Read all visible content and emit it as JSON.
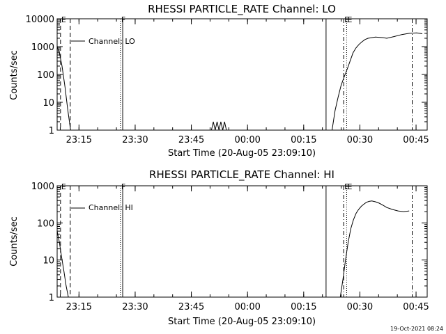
{
  "chart_data": [
    {
      "type": "line",
      "title": "RHESSI PARTICLE_RATE Channel: LO",
      "xlabel": "Start Time (20-Aug-05 23:09:10)",
      "ylabel": "Counts/sec",
      "yscale": "log",
      "ylim": [
        1,
        10000
      ],
      "xlim_minutes_after_start": [
        0,
        98.8
      ],
      "ytick_labels": [
        "1",
        "10",
        "100",
        "1000",
        "10000"
      ],
      "xtick_labels": [
        "23:15",
        "23:30",
        "23:45",
        "00:00",
        "00:15",
        "00:30",
        "00:45"
      ],
      "xtick_minutes_after_start": [
        5.83,
        20.83,
        35.83,
        50.83,
        65.83,
        80.83,
        95.83
      ],
      "legend": "Channel: LO",
      "event_markers": [
        {
          "label": "E",
          "minute": 0.9,
          "style": "dashed"
        },
        {
          "label": "F",
          "minute": 16.9,
          "style": "dotted"
        },
        {
          "label": "E",
          "minute": 76.5,
          "style": "dashdot"
        },
        {
          "label": "E",
          "minute": 77.3,
          "style": "dotted"
        }
      ],
      "extra_lines": [
        {
          "minute": 3.5,
          "style": "dashed"
        },
        {
          "minute": 17.5,
          "style": "solid"
        },
        {
          "minute": 71.8,
          "style": "solid"
        },
        {
          "minute": 94.8,
          "style": "dashdot"
        }
      ],
      "series": [
        {
          "x": [
            0,
            0.6,
            1.3,
            2.1,
            2.8,
            3.6
          ],
          "y": [
            1000,
            600,
            200,
            35,
            6,
            1
          ]
        },
        {
          "x": [
            41.2,
            41.7,
            42.2,
            42.7,
            43.2,
            43.7,
            44.2,
            44.7,
            45.2
          ],
          "y": [
            1,
            2,
            1,
            2,
            1,
            2,
            1,
            2,
            1
          ]
        },
        {
          "x": [
            73.4,
            74.2,
            75.0,
            75.8,
            76.6,
            77.4,
            78.2,
            79.0,
            79.8,
            80.6,
            81.4,
            82.2,
            83.0,
            85.0,
            87.0,
            88.0,
            90.0,
            92.0,
            94.0,
            96.0,
            97.5
          ],
          "y": [
            1,
            5,
            15,
            40,
            80,
            150,
            300,
            600,
            900,
            1200,
            1500,
            1800,
            2000,
            2200,
            2100,
            2000,
            2300,
            2700,
            3000,
            3100,
            2900
          ]
        }
      ]
    },
    {
      "type": "line",
      "title": "RHESSI PARTICLE_RATE Channel: HI",
      "xlabel": "Start Time (20-Aug-05 23:09:10)",
      "ylabel": "Counts/sec",
      "yscale": "log",
      "ylim": [
        1,
        1000
      ],
      "xlim_minutes_after_start": [
        0,
        98.8
      ],
      "ytick_labels": [
        "1",
        "10",
        "100",
        "1000"
      ],
      "xtick_labels": [
        "23:15",
        "23:30",
        "23:45",
        "00:00",
        "00:15",
        "00:30",
        "00:45"
      ],
      "xtick_minutes_after_start": [
        5.83,
        20.83,
        35.83,
        50.83,
        65.83,
        80.83,
        95.83
      ],
      "legend": "Channel: HI",
      "event_markers": [
        {
          "label": "E",
          "minute": 0.9,
          "style": "dashed"
        },
        {
          "label": "F",
          "minute": 16.9,
          "style": "dotted"
        },
        {
          "label": "E",
          "minute": 76.5,
          "style": "dashdot"
        },
        {
          "label": "E",
          "minute": 77.3,
          "style": "dotted"
        }
      ],
      "extra_lines": [
        {
          "minute": 3.5,
          "style": "dashed"
        },
        {
          "minute": 17.5,
          "style": "solid"
        },
        {
          "minute": 71.8,
          "style": "solid"
        },
        {
          "minute": 94.8,
          "style": "dashdot"
        }
      ],
      "series": [
        {
          "x": [
            0,
            0.6,
            1.2,
            1.8,
            2.4,
            3.0
          ],
          "y": [
            60,
            30,
            12,
            5,
            2,
            1
          ]
        },
        {
          "x": [
            75.6,
            76.3,
            77.0,
            77.7,
            78.4,
            79.1,
            79.8,
            80.5,
            81.2,
            81.9,
            82.6,
            83.3,
            84.0,
            85.0,
            86.0,
            87.0,
            88.0,
            89.5,
            91.0,
            92.5,
            94.0
          ],
          "y": [
            1,
            3,
            10,
            30,
            70,
            120,
            180,
            230,
            280,
            320,
            360,
            380,
            390,
            370,
            340,
            300,
            260,
            230,
            210,
            200,
            210
          ]
        }
      ]
    }
  ],
  "timestamp": "19-Oct-2021 08:24"
}
